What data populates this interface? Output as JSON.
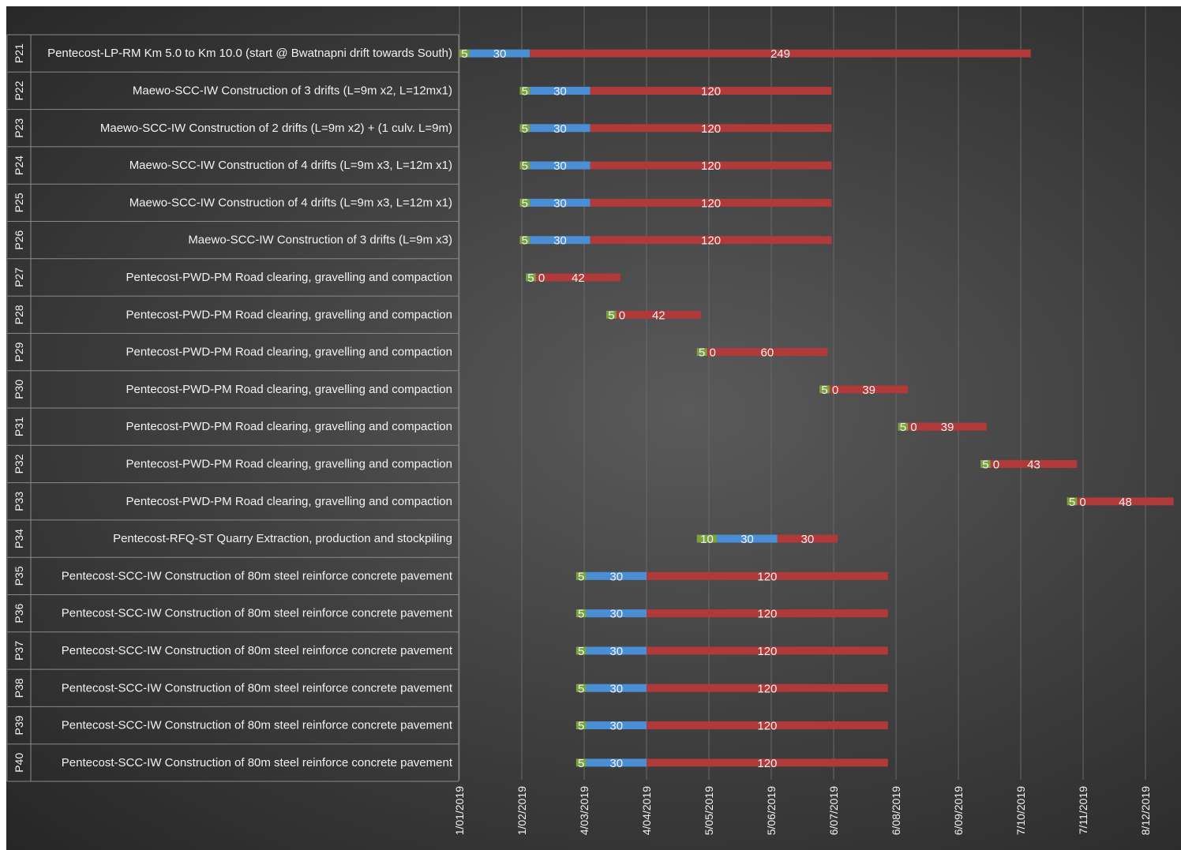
{
  "colors": {
    "prep": "#7aa33e",
    "procure": "#4a8fd6",
    "execute": "#b0393a",
    "grid": "#6a6a6a",
    "label_border": "#8a8a8a",
    "text": "#f2f2f2"
  },
  "chart_data": {
    "type": "bar",
    "orientation": "horizontal",
    "stacked": true,
    "start_date": "1/01/2019",
    "x_ticks": [
      "1/01/2019",
      "1/02/2019",
      "4/03/2019",
      "4/04/2019",
      "5/05/2019",
      "5/06/2019",
      "6/07/2019",
      "6/08/2019",
      "6/09/2019",
      "7/10/2019",
      "7/11/2019",
      "8/12/2019"
    ],
    "x_tick_days": [
      0,
      31,
      62,
      93,
      124,
      155,
      186,
      217,
      248,
      279,
      310,
      341
    ],
    "grid": true,
    "series": [
      {
        "color_key": "prep"
      },
      {
        "color_key": "procure"
      },
      {
        "color_key": "execute"
      }
    ],
    "tasks": [
      {
        "id": "P21",
        "name": "Pentecost-LP-RM Km 5.0 to Km 10.0 (start @ Bwatnapni drift towards South)",
        "start": "1/01/2019",
        "durations": [
          5,
          30,
          249
        ],
        "labels": [
          "5",
          "30",
          "249"
        ]
      },
      {
        "id": "P22",
        "name": "Maewo-SCC-IW Construction of 3 drifts (L=9m x2, L=12mx1)",
        "start": "31/01/2019",
        "durations": [
          5,
          30,
          120
        ],
        "labels": [
          "5",
          "30",
          "120"
        ]
      },
      {
        "id": "P23",
        "name": "Maewo-SCC-IW Construction of 2 drifts (L=9m x2) + (1 culv. L=9m)",
        "start": "31/01/2019",
        "durations": [
          5,
          30,
          120
        ],
        "labels": [
          "5",
          "30",
          "120"
        ]
      },
      {
        "id": "P24",
        "name": "Maewo-SCC-IW Construction of 4 drifts (L=9m x3, L=12m x1)",
        "start": "31/01/2019",
        "durations": [
          5,
          30,
          120
        ],
        "labels": [
          "5",
          "30",
          "120"
        ]
      },
      {
        "id": "P25",
        "name": "Maewo-SCC-IW Construction of 4 drifts (L=9m x3, L=12m x1)",
        "start": "31/01/2019",
        "durations": [
          5,
          30,
          120
        ],
        "labels": [
          "5",
          "30",
          "120"
        ]
      },
      {
        "id": "P26",
        "name": "Maewo-SCC-IW Construction of 3 drifts (L=9m x3)",
        "start": "31/01/2019",
        "durations": [
          5,
          30,
          120
        ],
        "labels": [
          "5",
          "30",
          "120"
        ]
      },
      {
        "id": "P27",
        "name": "Pentecost-PWD-PM Road clearing, gravelling and compaction",
        "start": "3/02/2019",
        "durations": [
          5,
          0,
          42
        ],
        "labels": [
          "5",
          "0",
          "42"
        ]
      },
      {
        "id": "P28",
        "name": "Pentecost-PWD-PM Road clearing, gravelling and compaction",
        "start": "15/03/2019",
        "durations": [
          5,
          0,
          42
        ],
        "labels": [
          "5",
          "0",
          "42"
        ]
      },
      {
        "id": "P29",
        "name": "Pentecost-PWD-PM Road clearing, gravelling and compaction",
        "start": "29/04/2019",
        "durations": [
          5,
          0,
          60
        ],
        "labels": [
          "5",
          "0",
          "60"
        ]
      },
      {
        "id": "P30",
        "name": "Pentecost-PWD-PM Road clearing, gravelling and compaction",
        "start": "29/06/2019",
        "durations": [
          5,
          0,
          39
        ],
        "labels": [
          "5",
          "0",
          "39"
        ]
      },
      {
        "id": "P31",
        "name": "Pentecost-PWD-PM Road clearing, gravelling and compaction",
        "start": "7/08/2019",
        "durations": [
          5,
          0,
          39
        ],
        "labels": [
          "5",
          "0",
          "39"
        ]
      },
      {
        "id": "P32",
        "name": "Pentecost-PWD-PM Road clearing, gravelling and compaction",
        "start": "17/09/2019",
        "durations": [
          5,
          0,
          43
        ],
        "labels": [
          "5",
          "0",
          "43"
        ]
      },
      {
        "id": "P33",
        "name": "Pentecost-PWD-PM Road clearing, gravelling and compaction",
        "start": "30/10/2019",
        "durations": [
          5,
          0,
          48
        ],
        "labels": [
          "5",
          "0",
          "48"
        ]
      },
      {
        "id": "P34",
        "name": "Pentecost-RFQ-ST Quarry Extraction, production and stockpiling",
        "start": "29/04/2019",
        "durations": [
          10,
          30,
          30
        ],
        "labels": [
          "10",
          "30",
          "30"
        ]
      },
      {
        "id": "P35",
        "name": "Pentecost-SCC-IW Construction of 80m steel reinforce concrete pavement",
        "start": "28/02/2019",
        "durations": [
          5,
          30,
          120
        ],
        "labels": [
          "5",
          "30",
          "120"
        ]
      },
      {
        "id": "P36",
        "name": "Pentecost-SCC-IW Construction of 80m steel reinforce concrete pavement",
        "start": "28/02/2019",
        "durations": [
          5,
          30,
          120
        ],
        "labels": [
          "5",
          "30",
          "120"
        ]
      },
      {
        "id": "P37",
        "name": "Pentecost-SCC-IW Construction of 80m steel reinforce concrete pavement",
        "start": "28/02/2019",
        "durations": [
          5,
          30,
          120
        ],
        "labels": [
          "5",
          "30",
          "120"
        ]
      },
      {
        "id": "P38",
        "name": "Pentecost-SCC-IW Construction of 80m steel reinforce concrete pavement",
        "start": "28/02/2019",
        "durations": [
          5,
          30,
          120
        ],
        "labels": [
          "5",
          "30",
          "120"
        ]
      },
      {
        "id": "P39",
        "name": "Pentecost-SCC-IW Construction of 80m steel reinforce concrete pavement",
        "start": "28/02/2019",
        "durations": [
          5,
          30,
          120
        ],
        "labels": [
          "5",
          "30",
          "120"
        ]
      },
      {
        "id": "P40",
        "name": "Pentecost-SCC-IW Construction of 80m steel reinforce concrete pavement",
        "start": "28/02/2019",
        "durations": [
          5,
          30,
          120
        ],
        "labels": [
          "5",
          "30",
          "120"
        ]
      }
    ]
  }
}
